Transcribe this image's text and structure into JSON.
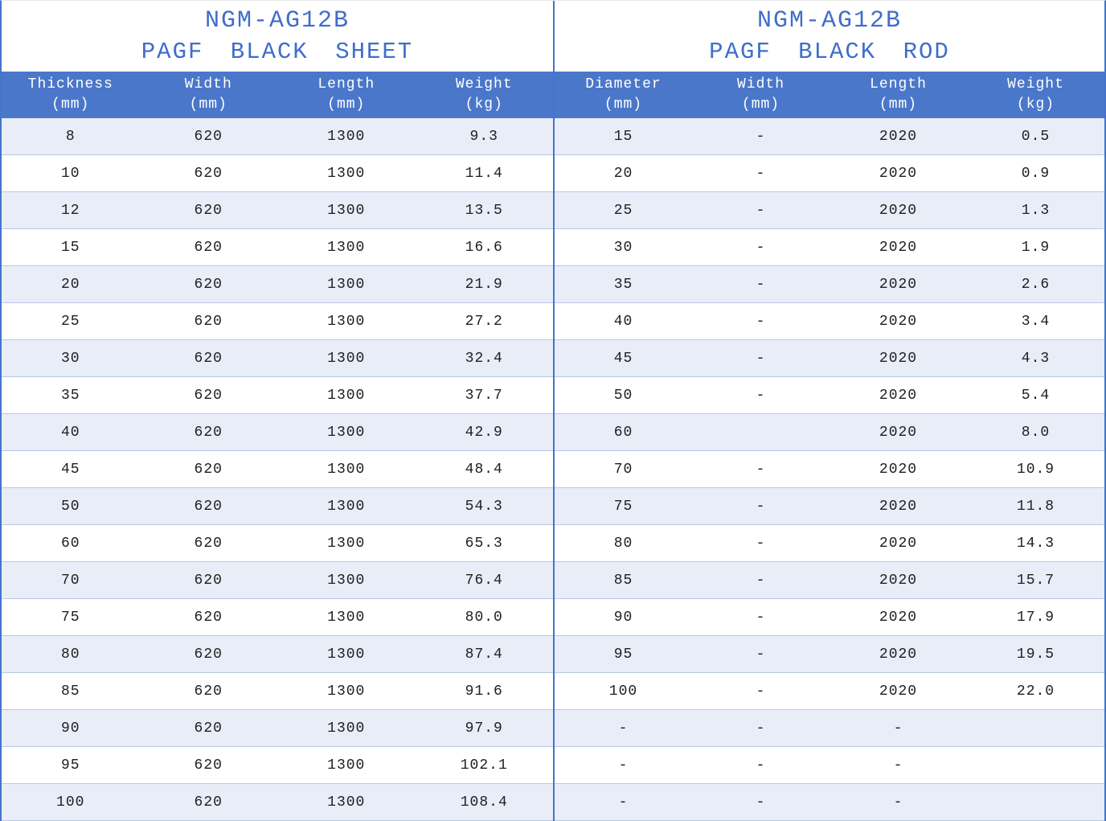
{
  "colors": {
    "accent_border": "#4574C9",
    "header_background": "#4A77C9",
    "title_text": "#3F6DCB",
    "banded_row": "#E9EDF8",
    "row_line": "#B8C8E6"
  },
  "sections": [
    {
      "id": "sheet",
      "title_line1": "NGM-AG12B",
      "title_line2": "PAGF BLACK SHEET",
      "columns": [
        {
          "label": "Thickness",
          "unit": "(mm)"
        },
        {
          "label": "Width",
          "unit": "(mm)"
        },
        {
          "label": "Length",
          "unit": "(mm)"
        },
        {
          "label": "Weight",
          "unit": "(kg)"
        }
      ],
      "rows": [
        [
          "8",
          "620",
          "1300",
          "9.3"
        ],
        [
          "10",
          "620",
          "1300",
          "11.4"
        ],
        [
          "12",
          "620",
          "1300",
          "13.5"
        ],
        [
          "15",
          "620",
          "1300",
          "16.6"
        ],
        [
          "20",
          "620",
          "1300",
          "21.9"
        ],
        [
          "25",
          "620",
          "1300",
          "27.2"
        ],
        [
          "30",
          "620",
          "1300",
          "32.4"
        ],
        [
          "35",
          "620",
          "1300",
          "37.7"
        ],
        [
          "40",
          "620",
          "1300",
          "42.9"
        ],
        [
          "45",
          "620",
          "1300",
          "48.4"
        ],
        [
          "50",
          "620",
          "1300",
          "54.3"
        ],
        [
          "60",
          "620",
          "1300",
          "65.3"
        ],
        [
          "70",
          "620",
          "1300",
          "76.4"
        ],
        [
          "75",
          "620",
          "1300",
          "80.0"
        ],
        [
          "80",
          "620",
          "1300",
          "87.4"
        ],
        [
          "85",
          "620",
          "1300",
          "91.6"
        ],
        [
          "90",
          "620",
          "1300",
          "97.9"
        ],
        [
          "95",
          "620",
          "1300",
          "102.1"
        ],
        [
          "100",
          "620",
          "1300",
          "108.4"
        ]
      ]
    },
    {
      "id": "rod",
      "title_line1": "NGM-AG12B",
      "title_line2": "PAGF BLACK ROD",
      "columns": [
        {
          "label": "Diameter",
          "unit": "(mm)"
        },
        {
          "label": "Width",
          "unit": "(mm)"
        },
        {
          "label": "Length",
          "unit": "(mm)"
        },
        {
          "label": "Weight",
          "unit": "(kg)"
        }
      ],
      "rows": [
        [
          "15",
          "-",
          "2020",
          "0.5"
        ],
        [
          "20",
          "-",
          "2020",
          "0.9"
        ],
        [
          "25",
          "-",
          "2020",
          "1.3"
        ],
        [
          "30",
          "-",
          "2020",
          "1.9"
        ],
        [
          "35",
          "-",
          "2020",
          "2.6"
        ],
        [
          "40",
          "-",
          "2020",
          "3.4"
        ],
        [
          "45",
          "-",
          "2020",
          "4.3"
        ],
        [
          "50",
          "-",
          "2020",
          "5.4"
        ],
        [
          "60",
          "",
          "2020",
          "8.0"
        ],
        [
          "70",
          "-",
          "2020",
          "10.9"
        ],
        [
          "75",
          "-",
          "2020",
          "11.8"
        ],
        [
          "80",
          "-",
          "2020",
          "14.3"
        ],
        [
          "85",
          "-",
          "2020",
          "15.7"
        ],
        [
          "90",
          "-",
          "2020",
          "17.9"
        ],
        [
          "95",
          "-",
          "2020",
          "19.5"
        ],
        [
          "100",
          "-",
          "2020",
          "22.0"
        ],
        [
          "-",
          "-",
          "-",
          ""
        ],
        [
          "-",
          "-",
          "-",
          ""
        ],
        [
          "-",
          "-",
          "-",
          ""
        ]
      ]
    }
  ]
}
